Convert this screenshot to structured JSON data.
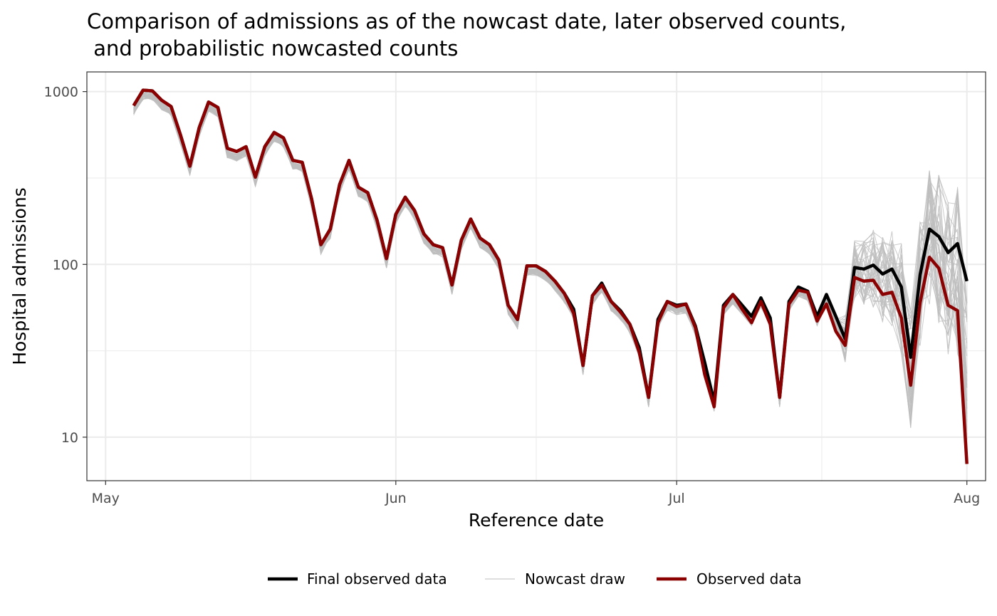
{
  "chart_data": {
    "type": "line",
    "title_lines": [
      "Comparison of admissions as of the nowcast date, later observed counts,",
      " and probabilistic nowcasted counts"
    ],
    "xlabel": "Reference date",
    "ylabel": "Hospital admissions",
    "y_scale": "log10",
    "ylim": [
      5.6,
      1300
    ],
    "xlim": [
      "2024-04-29",
      "2024-08-03"
    ],
    "x_ticks": [
      {
        "date": "2024-05-01",
        "label": "May"
      },
      {
        "date": "2024-06-01",
        "label": "Jun"
      },
      {
        "date": "2024-07-01",
        "label": "Jul"
      },
      {
        "date": "2024-08-01",
        "label": "Aug"
      }
    ],
    "y_ticks": [
      {
        "value": 10,
        "label": "10"
      },
      {
        "value": 100,
        "label": "100"
      },
      {
        "value": 1000,
        "label": "1000"
      }
    ],
    "grid": true,
    "legend_position": "bottom",
    "colors": {
      "final": "#000000",
      "nowcast": "#bebebe",
      "observed": "#8b0000"
    },
    "dates": [
      "2024-05-04",
      "2024-05-05",
      "2024-05-06",
      "2024-05-07",
      "2024-05-08",
      "2024-05-09",
      "2024-05-10",
      "2024-05-11",
      "2024-05-12",
      "2024-05-13",
      "2024-05-14",
      "2024-05-15",
      "2024-05-16",
      "2024-05-17",
      "2024-05-18",
      "2024-05-19",
      "2024-05-20",
      "2024-05-21",
      "2024-05-22",
      "2024-05-23",
      "2024-05-24",
      "2024-05-25",
      "2024-05-26",
      "2024-05-27",
      "2024-05-28",
      "2024-05-29",
      "2024-05-30",
      "2024-05-31",
      "2024-06-01",
      "2024-06-02",
      "2024-06-03",
      "2024-06-04",
      "2024-06-05",
      "2024-06-06",
      "2024-06-07",
      "2024-06-08",
      "2024-06-09",
      "2024-06-10",
      "2024-06-11",
      "2024-06-12",
      "2024-06-13",
      "2024-06-14",
      "2024-06-15",
      "2024-06-16",
      "2024-06-17",
      "2024-06-18",
      "2024-06-19",
      "2024-06-20",
      "2024-06-21",
      "2024-06-22",
      "2024-06-23",
      "2024-06-24",
      "2024-06-25",
      "2024-06-26",
      "2024-06-27",
      "2024-06-28",
      "2024-06-29",
      "2024-06-30",
      "2024-07-01",
      "2024-07-02",
      "2024-07-03",
      "2024-07-04",
      "2024-07-05",
      "2024-07-06",
      "2024-07-07",
      "2024-07-08",
      "2024-07-09",
      "2024-07-10",
      "2024-07-11",
      "2024-07-12",
      "2024-07-13",
      "2024-07-14",
      "2024-07-15",
      "2024-07-16",
      "2024-07-17",
      "2024-07-18",
      "2024-07-19",
      "2024-07-20",
      "2024-07-21",
      "2024-07-22",
      "2024-07-23",
      "2024-07-24",
      "2024-07-25",
      "2024-07-26",
      "2024-07-27",
      "2024-07-28",
      "2024-07-29",
      "2024-07-30",
      "2024-07-31",
      "2024-08-01"
    ],
    "series": [
      {
        "name": "Final observed data",
        "values": [
          830,
          1020,
          1010,
          890,
          820,
          560,
          370,
          620,
          870,
          810,
          470,
          450,
          480,
          320,
          480,
          580,
          540,
          400,
          390,
          240,
          130,
          160,
          290,
          400,
          280,
          260,
          180,
          108,
          195,
          245,
          205,
          150,
          130,
          125,
          76,
          138,
          183,
          142,
          130,
          106,
          58,
          48,
          98,
          98,
          91,
          80,
          68,
          55,
          26,
          66,
          78,
          61,
          54,
          45,
          33,
          17,
          48,
          61,
          58,
          59,
          44,
          27,
          16,
          58,
          67,
          58,
          50,
          64,
          49,
          17,
          61,
          74,
          70,
          50,
          67,
          50,
          37,
          96,
          94,
          99,
          88,
          94,
          74,
          29,
          87,
          160,
          145,
          117,
          132,
          80
        ]
      },
      {
        "name": "Observed data",
        "values": [
          830,
          1020,
          1010,
          890,
          820,
          560,
          370,
          620,
          870,
          810,
          470,
          450,
          480,
          320,
          480,
          580,
          540,
          400,
          390,
          240,
          130,
          160,
          290,
          400,
          280,
          260,
          180,
          108,
          195,
          245,
          205,
          150,
          130,
          125,
          76,
          138,
          183,
          142,
          130,
          106,
          58,
          48,
          98,
          98,
          91,
          80,
          68,
          52,
          26,
          66,
          76,
          61,
          53,
          45,
          31,
          17,
          46,
          61,
          57,
          59,
          43,
          23,
          15,
          56,
          67,
          55,
          46,
          61,
          45,
          17,
          59,
          71,
          69,
          47,
          59,
          41,
          34,
          84,
          80,
          81,
          67,
          69,
          49,
          20,
          60,
          110,
          95,
          58,
          54,
          7
        ]
      }
    ],
    "nowcast_draw": {
      "name": "Nowcast draw",
      "count": 40,
      "notes": "Probabilistic draws; spread widens over the final ~14 days (roughly 20 to 280 at the last dates)."
    }
  },
  "legend": {
    "items": [
      {
        "key": "final",
        "label": "Final observed data"
      },
      {
        "key": "nowcast",
        "label": "Nowcast draw"
      },
      {
        "key": "observed",
        "label": "Observed data"
      }
    ]
  }
}
